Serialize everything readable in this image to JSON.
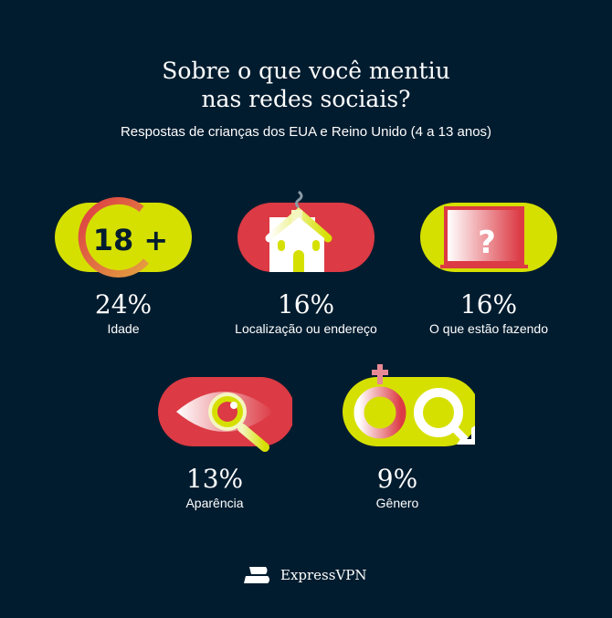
{
  "header": {
    "title_line1": "Sobre o que você mentiu",
    "title_line2": "nas redes sociais?",
    "subtitle": "Respostas de crianças dos EUA e Reino Unido (4 a 13 anos)"
  },
  "items": [
    {
      "percent": "24%",
      "label": "Idade",
      "icon": "age-18-plus-icon",
      "badge": "18 +"
    },
    {
      "percent": "16%",
      "label": "Localização ou endereço",
      "icon": "house-icon"
    },
    {
      "percent": "16%",
      "label": "O que estão fazendo",
      "icon": "laptop-question-icon",
      "badge": "?"
    },
    {
      "percent": "13%",
      "label": "Aparência",
      "icon": "eye-magnifier-icon"
    },
    {
      "percent": "9%",
      "label": "Gênero",
      "icon": "gender-symbols-icon"
    }
  ],
  "colors": {
    "background": "#021c2f",
    "yellow": "#d6e000",
    "red": "#dc3a44",
    "white": "#ffffff"
  },
  "footer": {
    "brand": "ExpressVPN"
  }
}
